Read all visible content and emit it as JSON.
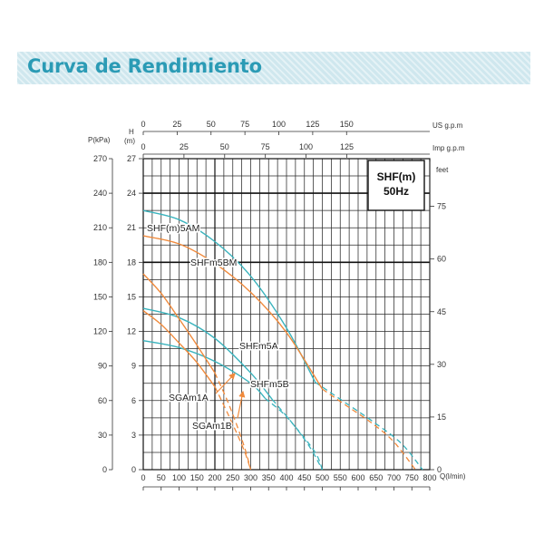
{
  "page_title": "Curva de Rendimiento",
  "colors": {
    "teal": "#3ab3bd",
    "orange": "#f08a3c",
    "banner": "#cfe7ee",
    "title": "#2b9bb5"
  },
  "chart_data": {
    "type": "line",
    "title": "SHF(m)",
    "subtitle": "50Hz",
    "x_axes": {
      "lpm": {
        "unit_label": "Q(l/min)",
        "ticks": [
          0,
          50,
          100,
          150,
          200,
          250,
          300,
          350,
          400,
          450,
          500,
          550,
          600,
          650,
          700,
          750,
          800
        ],
        "range": [
          0,
          800
        ]
      },
      "us_gpm": {
        "unit_label": "US g.p.m",
        "ticks": [
          0,
          25,
          50,
          75,
          100,
          125,
          150
        ]
      },
      "imp_gpm": {
        "unit_label": "Imp g.p.m",
        "ticks": [
          0,
          25,
          50,
          75,
          100,
          125
        ]
      }
    },
    "y_axes": {
      "head_m": {
        "unit_label": "H",
        "unit_sub": "(m)",
        "ticks": [
          0,
          3,
          6,
          9,
          12,
          15,
          18,
          21,
          24,
          27
        ],
        "range": [
          0,
          27
        ]
      },
      "pressure_kpa": {
        "unit_label": "P(kPa)",
        "ticks": [
          0,
          30,
          60,
          90,
          120,
          150,
          180,
          210,
          240,
          270
        ]
      },
      "head_feet": {
        "unit_label": "feet",
        "ticks": [
          0,
          15,
          30,
          45,
          60,
          75
        ]
      }
    },
    "grid": true,
    "series": [
      {
        "name": "SHF(m)5AM",
        "color": "teal",
        "x": [
          0,
          100,
          200,
          300,
          400,
          480
        ],
        "y": [
          22.5,
          21.7,
          19.8,
          16.8,
          12.3,
          7.6
        ],
        "x_dashed": [
          480,
          560,
          640,
          720,
          780
        ],
        "y_dashed": [
          7.6,
          5.9,
          4.2,
          2.3,
          0
        ]
      },
      {
        "name": "SHFm5BM",
        "color": "orange",
        "x": [
          0,
          100,
          200,
          300,
          400,
          500
        ],
        "y": [
          20.3,
          19.6,
          17.9,
          15.4,
          11.9,
          7.0
        ],
        "x_dashed": [
          500,
          570,
          640,
          700,
          760
        ],
        "y_dashed": [
          7.0,
          5.5,
          4.0,
          2.4,
          0
        ]
      },
      {
        "name": "SHFm5A",
        "color": "teal",
        "x": [
          0,
          100,
          200,
          300,
          360
        ],
        "y": [
          14.0,
          13.2,
          11.4,
          8.4,
          6.1
        ],
        "x_dashed": [
          360,
          420,
          480,
          500
        ],
        "y_dashed": [
          6.1,
          3.9,
          1.5,
          0
        ]
      },
      {
        "name": "SHFm5B",
        "color": "teal",
        "x": [
          0,
          100,
          200,
          300,
          340
        ],
        "y": [
          11.2,
          10.6,
          9.4,
          7.5,
          6.2
        ],
        "x_dashed": [
          340,
          400,
          460,
          500
        ],
        "y_dashed": [
          6.2,
          4.6,
          2.2,
          0
        ]
      },
      {
        "name": "SGAm1A",
        "color": "orange",
        "x": [
          0,
          50,
          100,
          150,
          200
        ],
        "y": [
          17.0,
          15.3,
          13.1,
          10.8,
          8.4
        ],
        "x_dashed": [
          200,
          240,
          280,
          300
        ],
        "y_dashed": [
          8.4,
          5.6,
          2.2,
          0
        ]
      },
      {
        "name": "SGAm1B",
        "color": "orange",
        "x": [
          0,
          50,
          100,
          150,
          200
        ],
        "y": [
          13.8,
          12.6,
          11.0,
          9.3,
          7.2
        ],
        "x_dashed": [
          200,
          240,
          280,
          300
        ],
        "y_dashed": [
          7.2,
          4.6,
          1.8,
          0
        ]
      }
    ],
    "labels": [
      "SHF(m)5AM",
      "SHFm5BM",
      "SHFm5A",
      "SHFm5B",
      "SGAm1A",
      "SGAm1B"
    ]
  }
}
